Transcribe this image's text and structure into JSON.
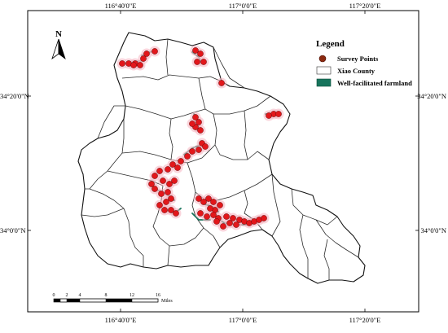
{
  "map": {
    "graticule": {
      "top_labels": [
        "116°40'0\"E",
        "117°0'0\"E",
        "117°20'0\"E"
      ],
      "bottom_labels": [
        "116°40'0\"E",
        "117°0'0\"E",
        "117°20'0\"E"
      ],
      "left_labels": [
        "34°20'0\"N",
        "34°0'0\"N"
      ],
      "right_labels": [
        "34°20'0\"N",
        "34°0'0\"N"
      ]
    },
    "north_arrow": {
      "label": "N",
      "icon": "north-arrow-icon"
    },
    "legend": {
      "title": "Legend",
      "items": [
        {
          "label": "Survey Points",
          "symbol": "circle",
          "color": "#8b2a10"
        },
        {
          "label": "Xiao County",
          "symbol": "box",
          "color": "#ffffff"
        },
        {
          "label": "Well-facilitated farmland",
          "symbol": "box",
          "color": "#17745c"
        }
      ]
    },
    "scale_bar": {
      "ticks": [
        "0",
        "2",
        "4",
        "8",
        "12",
        "16"
      ],
      "unit": "Miles"
    },
    "colors": {
      "survey_point": "#e2171b",
      "farmland": "#17745c",
      "boundary": "#2b2b2b"
    }
  }
}
